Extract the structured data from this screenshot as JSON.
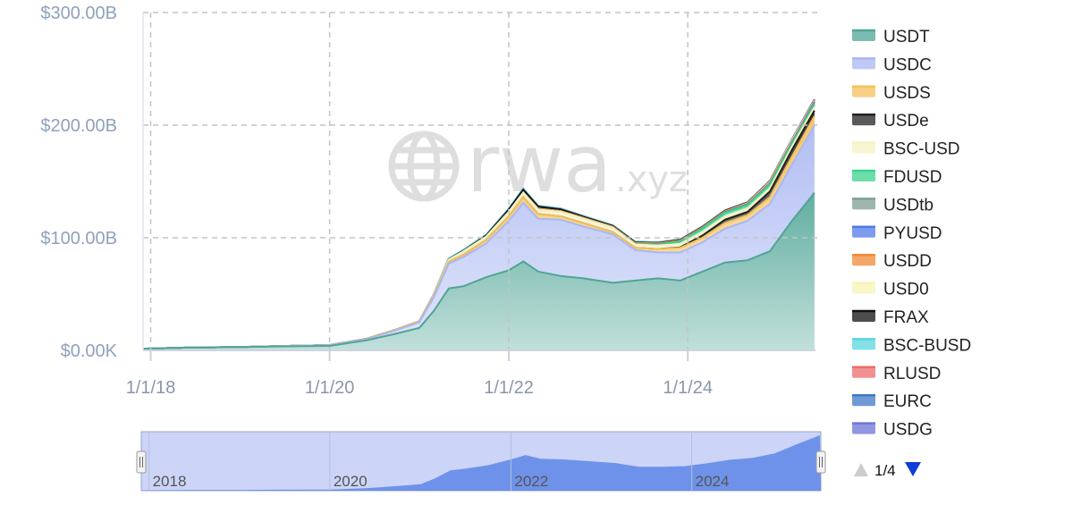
{
  "chart_data": {
    "type": "area",
    "stacked": true,
    "watermark": "rwa.xyz",
    "y_axis": {
      "ylim": [
        0,
        300000000000
      ],
      "ticks": [
        0,
        100000000000,
        200000000000,
        300000000000
      ],
      "tick_labels": [
        "$0.00K",
        "$100.00B",
        "$200.00B",
        "$300.00B"
      ]
    },
    "x_axis": {
      "xlim": [
        "2017-12-01",
        "2025-06-05"
      ],
      "ticks": [
        "2018-01-01",
        "2020-01-01",
        "2022-01-01",
        "2024-01-01"
      ],
      "tick_labels": [
        "1/1/18",
        "1/1/20",
        "1/1/22",
        "1/1/24"
      ]
    },
    "grid": true,
    "legend": {
      "position": "right"
    },
    "x": [
      "2017-12-01",
      "2018-06-01",
      "2019-01-01",
      "2019-06-01",
      "2020-01-01",
      "2020-06-01",
      "2020-10-01",
      "2021-01-01",
      "2021-03-01",
      "2021-05-01",
      "2021-07-01",
      "2021-10-01",
      "2022-01-01",
      "2022-03-01",
      "2022-05-01",
      "2022-08-01",
      "2022-11-01",
      "2023-03-01",
      "2023-06-01",
      "2023-09-01",
      "2023-12-01",
      "2024-03-01",
      "2024-06-01",
      "2024-09-01",
      "2024-12-01",
      "2025-03-01",
      "2025-06-01"
    ],
    "series": [
      {
        "name": "USDT",
        "color": "#4fa596",
        "values": [
          1.5,
          2.5,
          3,
          3.5,
          4,
          9,
          15,
          20,
          35,
          55,
          57,
          65,
          71,
          79,
          70,
          66,
          64,
          60,
          62,
          64,
          62,
          70,
          78,
          80,
          88,
          115,
          140
        ]
      },
      {
        "name": "USDC",
        "color": "#a9b7f2",
        "values": [
          0,
          0,
          0,
          0.3,
          0.5,
          1,
          3,
          5,
          12,
          22,
          26,
          30,
          44,
          52,
          47,
          50,
          46,
          43,
          27,
          23,
          25,
          26,
          30,
          35,
          42,
          50,
          60
        ]
      },
      {
        "name": "USDS",
        "color": "#f5c05a",
        "values": [
          0,
          0,
          0,
          0,
          0.2,
          0.3,
          0.6,
          0.8,
          1.2,
          1.5,
          2,
          3,
          4,
          5,
          4,
          3,
          3,
          2,
          2,
          3,
          4,
          4,
          5,
          5,
          6,
          7,
          8
        ]
      },
      {
        "name": "USDe",
        "color": "#222222",
        "values": [
          0,
          0,
          0,
          0,
          0,
          0,
          0,
          0,
          0,
          0,
          0,
          0,
          0,
          0,
          0,
          0,
          0,
          0,
          0,
          0,
          0.5,
          2,
          3,
          3,
          5,
          6,
          5
        ]
      },
      {
        "name": "BSC-USD",
        "color": "#f6f1c3",
        "values": [
          0,
          0,
          0,
          0,
          0,
          0,
          0,
          0,
          1,
          2,
          3,
          3,
          4,
          4,
          4,
          4,
          4,
          4,
          3,
          3,
          3,
          3,
          3,
          3,
          3,
          3,
          3
        ]
      },
      {
        "name": "FDUSD",
        "color": "#3bd38c",
        "values": [
          0,
          0,
          0,
          0,
          0,
          0,
          0,
          0,
          0,
          0,
          0,
          0,
          0,
          0,
          0,
          0,
          0,
          0,
          0.5,
          1,
          2,
          3,
          3,
          3,
          3,
          2,
          2
        ]
      },
      {
        "name": "USDtb",
        "color": "#7d9f93",
        "values": [
          0,
          0,
          0,
          0,
          0,
          0,
          0,
          0,
          0,
          0,
          0,
          0,
          0,
          0,
          0,
          0,
          0,
          0,
          0,
          0,
          0,
          0,
          0,
          0,
          0.5,
          1,
          1.5
        ]
      },
      {
        "name": "PYUSD",
        "color": "#4f79e8",
        "values": [
          0,
          0,
          0,
          0,
          0,
          0,
          0,
          0,
          0,
          0,
          0,
          0,
          0,
          0,
          0,
          0,
          0,
          0,
          0,
          0.2,
          0.3,
          0.4,
          0.5,
          0.6,
          0.5,
          0.6,
          0.9
        ]
      },
      {
        "name": "USDD",
        "color": "#f08a35",
        "values": [
          0,
          0,
          0,
          0,
          0,
          0,
          0,
          0,
          0,
          0,
          0,
          0,
          0,
          0.2,
          0.7,
          0.7,
          0.7,
          0.7,
          0.7,
          0.7,
          0.7,
          0.7,
          0.7,
          0.7,
          0.8,
          0.8,
          0.8
        ]
      },
      {
        "name": "USD0",
        "color": "#f7f3b5",
        "values": [
          0,
          0,
          0,
          0,
          0,
          0,
          0,
          0,
          0,
          0,
          0,
          0,
          0,
          0,
          0,
          0,
          0,
          0,
          0,
          0,
          0,
          0,
          0.2,
          0.5,
          1,
          1.2,
          0.6
        ]
      },
      {
        "name": "FRAX",
        "color": "#111111",
        "values": [
          0,
          0,
          0,
          0,
          0,
          0,
          0,
          0,
          0.2,
          0.4,
          0.6,
          1,
          2,
          2.5,
          2,
          1.5,
          1,
          0.8,
          0.7,
          0.6,
          0.6,
          0.6,
          0.6,
          0.5,
          0.4,
          0.3,
          0.3
        ]
      },
      {
        "name": "BSC-BUSD",
        "color": "#5ad6e0",
        "values": [
          0,
          0,
          0,
          0,
          0,
          0,
          0,
          0,
          0.3,
          0.6,
          0.6,
          0.7,
          0.7,
          0.7,
          0.6,
          0.6,
          0.5,
          0.5,
          0.4,
          0.3,
          0.3,
          0.2,
          0.2,
          0.2,
          0.1,
          0.1,
          0.1
        ]
      },
      {
        "name": "RLUSD",
        "color": "#ee6b6b",
        "values": [
          0,
          0,
          0,
          0,
          0,
          0,
          0,
          0,
          0,
          0,
          0,
          0,
          0,
          0,
          0,
          0,
          0,
          0,
          0,
          0,
          0,
          0,
          0,
          0,
          0.1,
          0.1,
          0.3
        ]
      },
      {
        "name": "EURC",
        "color": "#3f78c8",
        "values": [
          0,
          0,
          0,
          0,
          0,
          0,
          0,
          0,
          0,
          0,
          0,
          0,
          0.1,
          0.1,
          0.1,
          0.1,
          0.1,
          0.1,
          0.1,
          0.1,
          0.1,
          0.1,
          0.1,
          0.1,
          0.1,
          0.2,
          0.2
        ]
      },
      {
        "name": "USDG",
        "color": "#6f73d9",
        "values": [
          0,
          0,
          0,
          0,
          0,
          0,
          0,
          0,
          0,
          0,
          0,
          0,
          0,
          0,
          0,
          0,
          0,
          0,
          0,
          0,
          0,
          0,
          0,
          0,
          0,
          0.2,
          0.4
        ]
      }
    ],
    "series_units": "billions USD",
    "navigator": {
      "tick_labels": [
        "2018",
        "2020",
        "2022",
        "2024"
      ],
      "tick_dates": [
        "2018-01-01",
        "2020-01-01",
        "2022-01-01",
        "2024-01-01"
      ],
      "series_color": "#5d86e6",
      "selection_color": "#ccd4f7"
    }
  },
  "legend_pager": {
    "text": "1/4",
    "up_color": "#cccccc",
    "down_color": "#0b3fd6"
  }
}
